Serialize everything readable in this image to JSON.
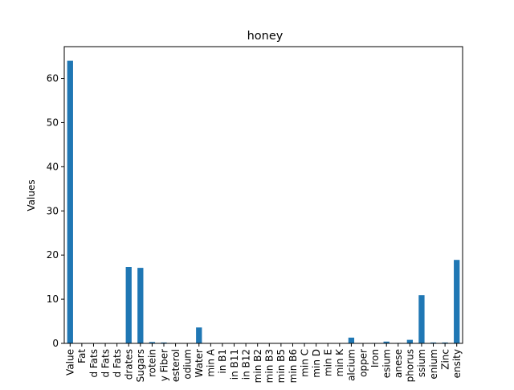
{
  "chart_data": {
    "type": "bar",
    "title": "honey",
    "xlabel": "",
    "ylabel": "Values",
    "ylim": [
      0,
      67.2
    ],
    "yticks": [
      0,
      10,
      20,
      30,
      40,
      50,
      60
    ],
    "grid": false,
    "legend": "none",
    "bar_color": "#1f77b4",
    "categories": [
      "Value",
      "Fat",
      "d Fats",
      "d Fats",
      "d Fats",
      "drates",
      "Sugars",
      "rotein",
      "y Fiber",
      "esterol",
      "odium",
      "Water",
      "min A",
      "in B1",
      "in B11",
      "in B12",
      "min B2",
      "min B3",
      "min B5",
      "min B6",
      "min C",
      "min D",
      "min E",
      "min K",
      "alcium",
      "opper",
      "Iron",
      "esium",
      "anese",
      "phorus",
      "ssium",
      "enium",
      "Zinc",
      "ensity"
    ],
    "values": [
      64,
      0,
      0,
      0,
      0,
      17.3,
      17.1,
      0.3,
      0.2,
      0,
      0,
      3.6,
      0,
      0,
      0,
      0,
      0,
      0,
      0,
      0,
      0.1,
      0,
      0,
      0,
      1.3,
      0,
      0.1,
      0.4,
      0.1,
      0.8,
      10.9,
      0.2,
      0.2,
      18.9
    ]
  }
}
